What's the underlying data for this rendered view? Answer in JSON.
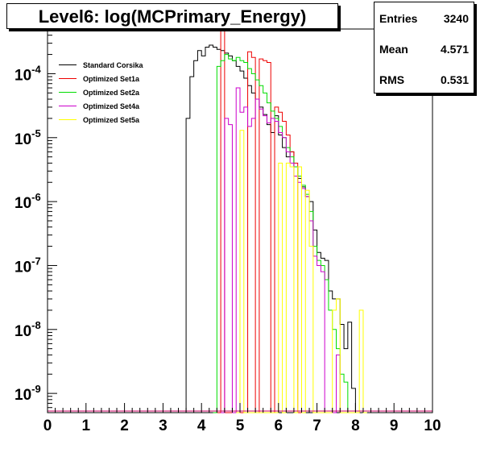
{
  "title": "Level6:  log(MCPrimary_Energy)",
  "stats": [
    {
      "label": "Entries",
      "value": "3240"
    },
    {
      "label": "Mean",
      "value": "4.571"
    },
    {
      "label": "RMS",
      "value": "0.531"
    }
  ],
  "chart_data": {
    "type": "line",
    "xlabel": "",
    "ylabel": "",
    "xlim": [
      0,
      10
    ],
    "ylim": [
      5e-10,
      0.0005
    ],
    "yscale": "log",
    "x_ticks": [
      0,
      1,
      2,
      3,
      4,
      5,
      6,
      7,
      8,
      9,
      10
    ],
    "x_tick_labels": [
      "0",
      "1",
      "2",
      "3",
      "4",
      "5",
      "6",
      "7",
      "8",
      "9",
      "10"
    ],
    "y_ticks": [
      1e-09,
      1e-08,
      1e-07,
      1e-06,
      1e-05,
      0.0001
    ],
    "y_tick_labels": [
      {
        "base": "10",
        "exp": "-9"
      },
      {
        "base": "10",
        "exp": "-8"
      },
      {
        "base": "10",
        "exp": "-7"
      },
      {
        "base": "10",
        "exp": "-6"
      },
      {
        "base": "10",
        "exp": "-5"
      },
      {
        "base": "10",
        "exp": "-4"
      }
    ],
    "legend_position": "top-left",
    "series": [
      {
        "name": "Standard Corsika",
        "color": "#000000",
        "points": [
          [
            3.6,
            2e-05
          ],
          [
            3.7,
            9e-05
          ],
          [
            3.8,
            0.00016
          ],
          [
            3.9,
            0.00023
          ],
          [
            4.0,
            0.00019
          ],
          [
            4.1,
            0.00026
          ],
          [
            4.2,
            0.00028
          ],
          [
            4.3,
            0.00026
          ],
          [
            4.4,
            0.00024
          ],
          [
            4.5,
            0.00023
          ],
          [
            4.6,
            0.00021
          ],
          [
            4.7,
            0.00019
          ],
          [
            4.8,
            0.00016
          ],
          [
            4.9,
            0.00013
          ],
          [
            5.0,
            0.00011
          ],
          [
            5.1,
            8.5e-05
          ],
          [
            5.2,
            6.5e-05
          ],
          [
            5.3,
            5e-05
          ],
          [
            5.4,
            4e-05
          ],
          [
            5.5,
            3e-05
          ],
          [
            5.6,
            2.3e-05
          ],
          [
            5.7,
            1.6e-05
          ],
          [
            5.8,
            1.2e-05
          ],
          [
            5.9,
            2.2e-05
          ],
          [
            6.0,
            1.1e-05
          ],
          [
            6.1,
            7e-06
          ],
          [
            6.2,
            5e-06
          ],
          [
            6.3,
            6e-06
          ],
          [
            6.4,
            3.5e-06
          ],
          [
            6.5,
            2.3e-06
          ],
          [
            6.6,
            1.7e-06
          ],
          [
            6.7,
            1.2e-06
          ],
          [
            6.8,
            1e-06
          ],
          [
            6.9,
            3.6e-07
          ],
          [
            7.0,
            1.6e-07
          ],
          [
            7.1,
            1.3e-07
          ],
          [
            7.2,
            1.2e-07
          ],
          [
            7.3,
            4e-08
          ],
          [
            7.4,
            3e-08
          ],
          [
            7.5,
            3e-08
          ],
          [
            7.6,
            1.2e-08
          ],
          [
            7.7,
            5e-09
          ],
          [
            7.8,
            1.3e-08
          ],
          [
            7.9,
            1.2e-09
          ],
          [
            8.0,
            0
          ]
        ]
      },
      {
        "name": "Optimized Set1a",
        "color": "#ee0000",
        "points": [
          [
            4.4,
            0
          ],
          [
            4.5,
            0.0005
          ],
          [
            4.6,
            0
          ],
          [
            5.1,
            0
          ],
          [
            5.2,
            0.00022
          ],
          [
            5.3,
            0.00018
          ],
          [
            5.4,
            0
          ],
          [
            5.5,
            0.00017
          ],
          [
            5.6,
            0.00016
          ],
          [
            5.7,
            0.00015
          ],
          [
            5.8,
            0
          ],
          [
            5.9,
            3e-05
          ],
          [
            6.0,
            2.5e-05
          ],
          [
            6.1,
            1.8e-05
          ],
          [
            6.2,
            1.1e-05
          ],
          [
            6.3,
            6e-06
          ],
          [
            6.4,
            4e-06
          ],
          [
            6.5,
            0
          ]
        ]
      },
      {
        "name": "Optimized Set2a",
        "color": "#00dd00",
        "points": [
          [
            4.3,
            0
          ],
          [
            4.4,
            0.00013
          ],
          [
            4.5,
            0.00016
          ],
          [
            4.6,
            0.0002
          ],
          [
            4.7,
            0.00017
          ],
          [
            4.8,
            0.00016
          ],
          [
            4.9,
            0.00018
          ],
          [
            5.0,
            0.00016
          ],
          [
            5.1,
            0.00015
          ],
          [
            5.2,
            0.00012
          ],
          [
            5.3,
            0.0001
          ],
          [
            5.4,
            8e-05
          ],
          [
            5.5,
            6.5e-05
          ],
          [
            5.6,
            5e-05
          ],
          [
            5.7,
            3.5e-05
          ],
          [
            5.8,
            2.6e-05
          ],
          [
            5.9,
            2e-05
          ],
          [
            6.0,
            1.5e-05
          ],
          [
            6.1,
            1e-05
          ],
          [
            6.2,
            7e-06
          ],
          [
            6.3,
            5e-06
          ],
          [
            6.4,
            3.5e-06
          ],
          [
            6.5,
            2.5e-06
          ],
          [
            6.6,
            1.8e-06
          ],
          [
            6.7,
            1.3e-06
          ],
          [
            6.8,
            7e-07
          ],
          [
            6.9,
            2e-07
          ],
          [
            7.0,
            1.2e-07
          ],
          [
            7.1,
            1e-07
          ],
          [
            7.2,
            6e-08
          ],
          [
            7.3,
            2e-08
          ],
          [
            7.4,
            1e-08
          ],
          [
            7.5,
            5e-09
          ],
          [
            7.6,
            2e-09
          ],
          [
            7.7,
            1.5e-09
          ],
          [
            7.8,
            0
          ]
        ]
      },
      {
        "name": "Optimized Set4a",
        "color": "#cc00cc",
        "points": [
          [
            4.5,
            0
          ],
          [
            4.6,
            2e-05
          ],
          [
            4.7,
            1.6e-05
          ],
          [
            4.8,
            0
          ],
          [
            4.9,
            6e-05
          ],
          [
            5.0,
            2.5e-05
          ],
          [
            5.1,
            3e-05
          ],
          [
            5.2,
            1.5e-05
          ],
          [
            5.3,
            2e-05
          ],
          [
            5.4,
            4e-05
          ],
          [
            5.5,
            2.8e-05
          ],
          [
            5.6,
            2.2e-05
          ],
          [
            5.7,
            1.7e-05
          ],
          [
            5.8,
            2e-05
          ],
          [
            5.9,
            1.8e-05
          ],
          [
            6.0,
            1.2e-05
          ],
          [
            6.1,
            1e-05
          ],
          [
            6.2,
            6e-06
          ],
          [
            6.3,
            4e-06
          ],
          [
            6.4,
            2.5e-06
          ],
          [
            6.5,
            2e-06
          ],
          [
            6.6,
            1.6e-06
          ],
          [
            6.7,
            1.2e-06
          ],
          [
            6.8,
            5e-07
          ],
          [
            6.9,
            1.4e-07
          ],
          [
            7.0,
            1e-07
          ],
          [
            7.1,
            8e-08
          ],
          [
            7.2,
            0
          ],
          [
            7.4,
            0
          ],
          [
            7.5,
            4e-09
          ],
          [
            7.6,
            0
          ]
        ]
      },
      {
        "name": "Optimized Set5a",
        "color": "#ffff00",
        "points": [
          [
            4.9,
            0
          ],
          [
            5.0,
            1.3e-05
          ],
          [
            5.1,
            0
          ],
          [
            5.9,
            0
          ],
          [
            6.0,
            4e-06
          ],
          [
            6.1,
            0
          ],
          [
            6.2,
            4e-06
          ],
          [
            6.3,
            3.5e-06
          ],
          [
            6.4,
            0
          ],
          [
            6.5,
            3.5e-06
          ],
          [
            6.6,
            0
          ],
          [
            6.7,
            1.5e-06
          ],
          [
            6.8,
            2e-07
          ],
          [
            6.9,
            0
          ],
          [
            7.3,
            0
          ],
          [
            7.4,
            2e-08
          ],
          [
            7.5,
            3e-08
          ],
          [
            7.6,
            0
          ],
          [
            8.0,
            0
          ],
          [
            8.1,
            2e-08
          ],
          [
            8.2,
            0
          ]
        ]
      }
    ]
  }
}
